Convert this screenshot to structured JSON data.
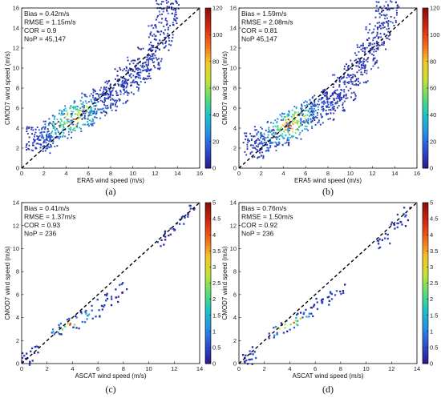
{
  "colors": {
    "colormap": [
      "#2a1b8f",
      "#2b4fd0",
      "#2493e6",
      "#1fc3c4",
      "#5fdd6f",
      "#c6e03a",
      "#f3c52a",
      "#f36a1a",
      "#d22a10",
      "#8a1208"
    ],
    "diagonal": "#000000",
    "axis": "#000000"
  },
  "chart_data": [
    {
      "panel": "(a)",
      "type": "heatmap",
      "xlabel": "ERA5 wind speed (m/s)",
      "ylabel": "CMOD7 wind speed (m/s)",
      "xlim": [
        0,
        16
      ],
      "ylim": [
        0,
        16
      ],
      "xticks": [
        "0",
        "2",
        "4",
        "6",
        "8",
        "10",
        "12",
        "14",
        "16"
      ],
      "yticks": [
        "0",
        "2",
        "4",
        "6",
        "8",
        "10",
        "12",
        "14",
        "16"
      ],
      "stats": [
        "Bias = 0.42m/s",
        "RMSE = 1.15m/s",
        "COR = 0.9",
        "NoP = 45,147"
      ],
      "colorbar": {
        "min": 0,
        "max": 120,
        "ticks": [
          "0",
          "20",
          "40",
          "60",
          "80",
          "100",
          "120"
        ]
      },
      "reference_line": "1:1 dashed",
      "density_ridge": {
        "x": [
          1.5,
          2.5,
          3.5,
          4.5,
          5.5,
          6.5,
          7.5,
          8.5,
          9.5,
          10.5,
          11.5,
          12.5,
          13.2
        ],
        "y": [
          2.8,
          3.4,
          4.2,
          4.9,
          5.5,
          6.2,
          6.8,
          7.7,
          8.7,
          9.8,
          11.0,
          13.0,
          15.5
        ],
        "peak_count": 120
      }
    },
    {
      "panel": "(b)",
      "type": "heatmap",
      "xlabel": "ERA5 wind speed (m/s)",
      "ylabel": "CMOD7 wind speed (m/s)",
      "xlim": [
        0,
        16
      ],
      "ylim": [
        0,
        16
      ],
      "xticks": [
        "0",
        "2",
        "4",
        "6",
        "8",
        "10",
        "12",
        "14",
        "16"
      ],
      "yticks": [
        "0",
        "2",
        "4",
        "6",
        "8",
        "10",
        "12",
        "14",
        "16"
      ],
      "stats": [
        "Bias = 1.59m/s",
        "RMSE = 2.08m/s",
        "COR = 0.81",
        "NoP 45,147"
      ],
      "colorbar": {
        "min": 0,
        "max": 120,
        "ticks": [
          "0",
          "20",
          "40",
          "60",
          "80",
          "100",
          "120"
        ]
      },
      "reference_line": "1:1 dashed",
      "density_ridge": {
        "x": [
          1.5,
          2.5,
          3.5,
          4.5,
          5.5,
          6.5,
          7.5,
          8.5,
          9.5,
          10.5,
          11.5,
          12.5,
          13.3
        ],
        "y": [
          2.3,
          2.9,
          3.6,
          4.2,
          5.0,
          5.6,
          6.0,
          6.8,
          8.0,
          9.6,
          11.2,
          13.2,
          15.5
        ],
        "peak_count": 120
      }
    },
    {
      "panel": "(c)",
      "type": "heatmap",
      "xlabel": "ASCAT wind speed (m/s)",
      "ylabel": "CMOD7 wind speed (m/s)",
      "xlim": [
        0,
        14
      ],
      "ylim": [
        0,
        14
      ],
      "xticks": [
        "0",
        "2",
        "4",
        "6",
        "8",
        "10",
        "12",
        "14"
      ],
      "yticks": [
        "0",
        "2",
        "4",
        "6",
        "8",
        "10",
        "12",
        "14"
      ],
      "stats": [
        "Bias = 0.41m/s",
        "RMSE = 1.37m/s",
        "COR = 0.93",
        "NoP = 236"
      ],
      "colorbar": {
        "min": 0,
        "max": 5,
        "ticks": [
          "0",
          "0.5",
          "1",
          "1.5",
          "2",
          "2.5",
          "3",
          "3.5",
          "4",
          "4.5",
          "5"
        ]
      },
      "reference_line": "1:1 dashed",
      "density_ridge": {
        "x": [
          0.3,
          0.6,
          1.0,
          2.7,
          3.2,
          3.8,
          4.3,
          4.8,
          5.3,
          5.8,
          6.3,
          6.8,
          7.3,
          8.0,
          11.0,
          11.6,
          12.2,
          12.8,
          13.3
        ],
        "y": [
          0.4,
          0.6,
          1.1,
          2.8,
          3.1,
          3.4,
          3.6,
          4.0,
          4.3,
          4.6,
          5.0,
          5.6,
          5.9,
          6.5,
          10.6,
          11.3,
          12.0,
          12.7,
          13.2
        ],
        "peak_count": 5
      }
    },
    {
      "panel": "(d)",
      "type": "heatmap",
      "xlabel": "ASCAT wind speed (m/s)",
      "ylabel": "CMOD7 wind speed (m/s)",
      "xlim": [
        0,
        14
      ],
      "ylim": [
        0,
        14
      ],
      "xticks": [
        "0",
        "2",
        "4",
        "6",
        "8",
        "10",
        "12",
        "14"
      ],
      "yticks": [
        "0",
        "2",
        "4",
        "6",
        "8",
        "10",
        "12",
        "14"
      ],
      "stats": [
        "Bias = 0.76m/s",
        "RMSE = 1.50m/s",
        "COR = 0.92",
        "NoP = 236"
      ],
      "colorbar": {
        "min": 0,
        "max": 5,
        "ticks": [
          "0",
          "0.5",
          "1",
          "1.5",
          "2",
          "2.5",
          "3",
          "3.5",
          "4",
          "4.5",
          "5"
        ]
      },
      "reference_line": "1:1 dashed",
      "density_ridge": {
        "x": [
          0.4,
          0.8,
          1.2,
          2.7,
          3.2,
          3.8,
          4.3,
          4.8,
          5.3,
          5.8,
          6.3,
          6.8,
          7.3,
          8.0,
          11.0,
          11.6,
          12.2,
          12.8,
          13.3
        ],
        "y": [
          0.3,
          0.5,
          0.9,
          2.6,
          3.0,
          3.3,
          3.6,
          3.9,
          4.2,
          4.6,
          5.1,
          5.5,
          5.9,
          6.6,
          10.4,
          11.0,
          11.8,
          12.4,
          13.0
        ],
        "peak_count": 5
      }
    }
  ]
}
